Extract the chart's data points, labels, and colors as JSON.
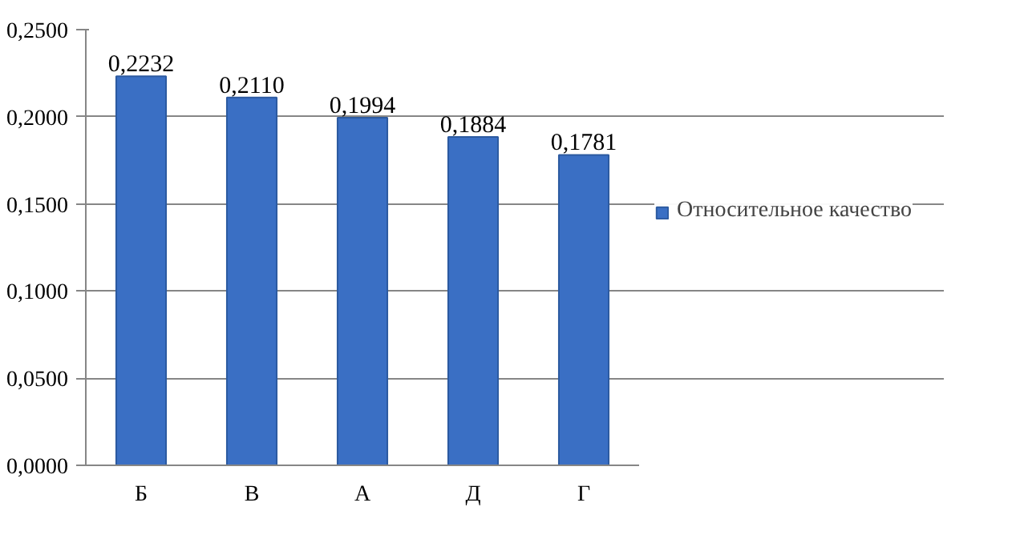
{
  "chart_data": {
    "type": "bar",
    "categories": [
      "Б",
      "В",
      "А",
      "Д",
      "Г"
    ],
    "series": [
      {
        "name": "Относительное качество",
        "color": "#3a6fc4",
        "values": [
          0.2232,
          0.211,
          0.1994,
          0.1884,
          0.1781
        ],
        "value_labels": [
          "0,2232",
          "0,2110",
          "0,1994",
          "0,1884",
          "0,1781"
        ]
      }
    ],
    "ylim": [
      0,
      0.25
    ],
    "yticks": [
      {
        "value": 0,
        "label": "0,0000"
      },
      {
        "value": 0.05,
        "label": "0,0500"
      },
      {
        "value": 0.1,
        "label": "0,1000"
      },
      {
        "value": 0.15,
        "label": "0,1500"
      },
      {
        "value": 0.2,
        "label": "0,2000"
      },
      {
        "value": 0.25,
        "label": "0,2500"
      }
    ],
    "grid": "y",
    "legend": "right"
  }
}
